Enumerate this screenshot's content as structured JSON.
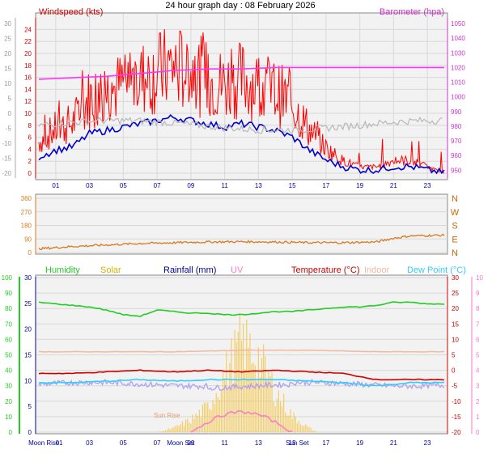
{
  "title": "24 hour graph day : 08 February 2026",
  "colors": {
    "wind": "#ff0000",
    "gust_line": "#ff0000",
    "avg_wind": "#0000cc",
    "barometer": "#ff33ff",
    "grey_trace": "#b8b8b8",
    "direction": "#d97a20",
    "compass": "#cc6600",
    "humidity": "#22cc22",
    "solar": "#f5c542",
    "rainfall": "#000099",
    "uv": "#ff77cc",
    "temperature": "#cc0000",
    "indoor": "#f0b8a0",
    "dewpoint": "#33ccff",
    "purple_trace": "#b0a0f0",
    "panel_bg": "#f2f2f2",
    "border": "#888888"
  },
  "chart_data": [
    {
      "type": "line",
      "name": "wind-barometer",
      "left_label": "Windspeed (kts)",
      "right_label": "Barometer (hpa)",
      "x_ticks": [
        "01",
        "03",
        "05",
        "07",
        "09",
        "11",
        "13",
        "15",
        "17",
        "19",
        "21",
        "23"
      ],
      "outer_left_ticks": [
        30,
        25,
        20,
        15,
        10,
        5,
        0,
        -5,
        -10,
        -15,
        -20
      ],
      "left_ticks": [
        24,
        22,
        20,
        18,
        16,
        14,
        12,
        10,
        8,
        6,
        4,
        2,
        0
      ],
      "right_ticks": [
        1050,
        1040,
        1030,
        1020,
        1010,
        1000,
        990,
        980,
        970,
        960,
        950
      ],
      "left_range": [
        0,
        25
      ],
      "right_range": [
        948,
        1050
      ],
      "series": [
        {
          "name": "Windspeed (kts)",
          "hours": [
            0,
            1,
            2,
            3,
            4,
            5,
            6,
            7,
            8,
            9,
            10,
            11,
            12,
            13,
            14,
            15,
            16,
            17,
            18,
            19,
            20,
            21,
            22,
            23,
            24
          ],
          "values": [
            5,
            7,
            8,
            12,
            13,
            14,
            15,
            16,
            17,
            16,
            15,
            14,
            15,
            14,
            13,
            11,
            7,
            4,
            2,
            1,
            1,
            2,
            2,
            1,
            0
          ]
        },
        {
          "name": "Barometer (hpa)",
          "hours": [
            0,
            2,
            4,
            6,
            7,
            8,
            10,
            12,
            14,
            16,
            18,
            20,
            22,
            24
          ],
          "values": [
            1012,
            1013,
            1014,
            1016,
            1017,
            1018,
            1019,
            1019,
            1020,
            1020,
            1020,
            1020,
            1020,
            1020
          ]
        }
      ]
    },
    {
      "type": "line",
      "name": "wind-direction",
      "left_ticks": [
        360,
        270,
        180,
        90,
        0
      ],
      "compass": [
        "N",
        "W",
        "S",
        "E",
        "N"
      ],
      "series": [
        {
          "name": "Direction",
          "hours": [
            0,
            2,
            4,
            6,
            8,
            10,
            12,
            14,
            16,
            18,
            20,
            21,
            22,
            24
          ],
          "values": [
            25,
            40,
            50,
            60,
            65,
            70,
            72,
            70,
            65,
            65,
            70,
            95,
            110,
            115
          ]
        }
      ]
    },
    {
      "type": "line",
      "name": "temp-humidity-solar",
      "legend": [
        "Humidity",
        "Solar",
        "Rainfall (mm)",
        "UV",
        "Temperature (°C)",
        "Indoor",
        "Dew Point (°C)"
      ],
      "x_ticks": [
        "Moon Rise",
        "01",
        "03",
        "05",
        "07",
        "09",
        "Moon Set",
        "11",
        "13",
        "15",
        "Sun Set",
        "17",
        "19",
        "21",
        "23"
      ],
      "humidity_ticks": [
        100,
        90,
        80,
        70,
        60,
        50,
        40,
        30,
        20,
        10,
        0
      ],
      "solar_ticks": [
        30,
        25,
        20,
        15,
        10,
        5,
        0
      ],
      "temp_ticks": [
        30,
        25,
        20,
        15,
        10,
        5,
        0,
        -5,
        -10,
        -15,
        -20
      ],
      "uv_ticks": [
        10,
        9,
        8,
        7,
        6,
        5,
        4,
        3,
        2,
        1,
        0
      ],
      "sun_rise_label": "Sun Rise",
      "series": [
        {
          "name": "Humidity",
          "hours": [
            0,
            1,
            2,
            3,
            4,
            5,
            6,
            7,
            8,
            9,
            10,
            11,
            12,
            13,
            14,
            15,
            16,
            17,
            18,
            19,
            20,
            21,
            22,
            23,
            24
          ],
          "values": [
            84,
            83,
            82,
            81,
            79,
            76,
            75,
            79,
            78,
            77,
            77,
            76,
            76,
            77,
            78,
            78,
            79,
            80,
            81,
            81,
            82,
            84,
            84,
            83,
            83
          ]
        },
        {
          "name": "Temperature (°C)",
          "hours": [
            0,
            2,
            4,
            6,
            8,
            10,
            12,
            14,
            16,
            18,
            20,
            22,
            24
          ],
          "values": [
            -1,
            -1,
            -0.5,
            0,
            -0.5,
            0,
            -0.5,
            0,
            -0.5,
            -1,
            -3,
            -3,
            -3
          ]
        },
        {
          "name": "Indoor",
          "hours": [
            0,
            4,
            8,
            12,
            16,
            20,
            24
          ],
          "values": [
            6,
            6,
            6,
            6.5,
            6.5,
            6,
            6
          ]
        },
        {
          "name": "Dew Point (°C)",
          "hours": [
            0,
            2,
            4,
            6,
            8,
            10,
            12,
            14,
            16,
            18,
            20,
            22,
            24
          ],
          "values": [
            -4,
            -4,
            -3.5,
            -3,
            -3.5,
            -3,
            -3,
            -3,
            -3.5,
            -4,
            -5,
            -4,
            -4
          ]
        },
        {
          "name": "Solar",
          "hours": [
            7,
            8,
            9,
            10,
            11,
            12,
            13,
            14,
            15,
            16,
            16.5
          ],
          "values": [
            0,
            1,
            3,
            6,
            14,
            22,
            18,
            10,
            4,
            1,
            0
          ]
        }
      ]
    }
  ]
}
